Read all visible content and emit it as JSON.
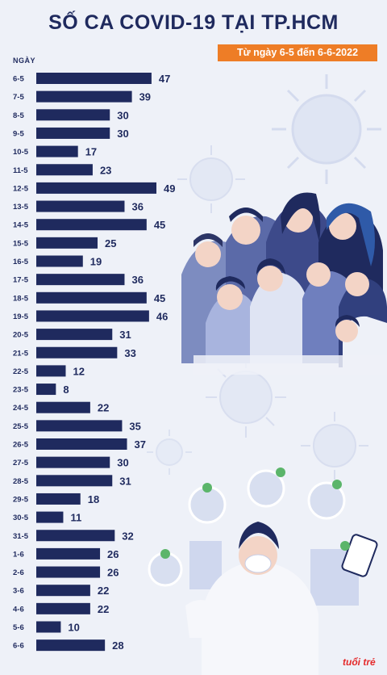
{
  "title": "SỐ CA COVID-19 TẠI TP.HCM",
  "subtitle": "Từ ngày 6-5 đến 6-6-2022",
  "logo": "tuổi trẻ",
  "colors": {
    "bar": "#1f2a5e",
    "title": "#1f2a5e",
    "badge": "#ee7d26",
    "background": "#eef1f8",
    "logo": "#e4292a"
  },
  "chart_data": {
    "type": "bar",
    "orientation": "horizontal",
    "title": "SỐ CA COVID-19 TẠI TP.HCM",
    "subtitle": "Từ ngày 6-5 đến 6-6-2022",
    "category_axis_label": "NGÀY",
    "categories": [
      "6-5",
      "7-5",
      "8-5",
      "9-5",
      "10-5",
      "11-5",
      "12-5",
      "13-5",
      "14-5",
      "15-5",
      "16-5",
      "17-5",
      "18-5",
      "19-5",
      "20-5",
      "21-5",
      "22-5",
      "23-5",
      "24-5",
      "25-5",
      "26-5",
      "27-5",
      "28-5",
      "29-5",
      "30-5",
      "31-5",
      "1-6",
      "2-6",
      "3-6",
      "4-6",
      "5-6",
      "6-6"
    ],
    "values": [
      47,
      39,
      30,
      30,
      17,
      23,
      49,
      36,
      45,
      25,
      19,
      36,
      45,
      46,
      31,
      33,
      12,
      8,
      22,
      35,
      37,
      30,
      31,
      18,
      11,
      32,
      26,
      26,
      22,
      22,
      10,
      28
    ],
    "data_labels": true,
    "xlim": [
      0,
      50
    ],
    "grid": false,
    "legend": "none"
  }
}
